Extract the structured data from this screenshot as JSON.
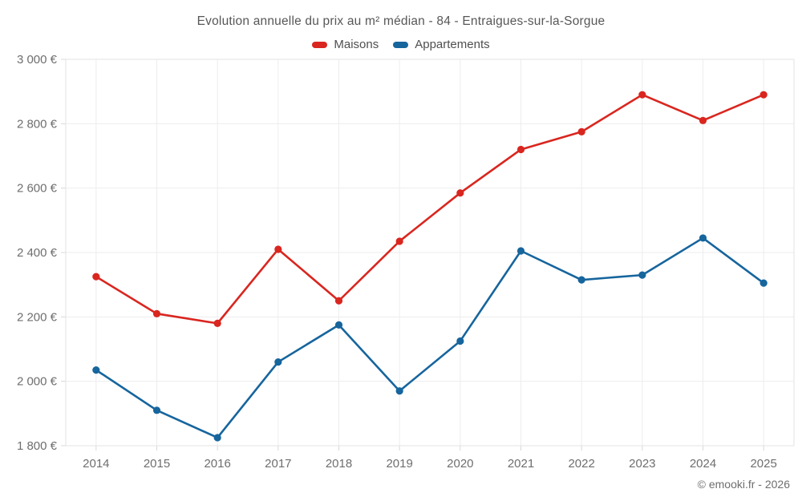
{
  "header": {
    "title": "Evolution annuelle du prix au m² médian - 84 - Entraigues-sur-la-Sorgue"
  },
  "legend": {
    "items": [
      {
        "label": "Maisons",
        "color": "#d9261f"
      },
      {
        "label": "Appartements",
        "color": "#16659d"
      }
    ]
  },
  "footer": {
    "watermark": "© emooki.fr - 2026"
  },
  "colors": {
    "grid": "#ededed",
    "axis_border": "#e3e3e3",
    "tick": "#d8d8d8",
    "title_text": "#575757",
    "axis_text": "#6e6e6e",
    "maisons_red": "#d9261f",
    "appartements_blue": "#16659d"
  },
  "chart_data": {
    "type": "line",
    "title": "Evolution annuelle du prix au m² médian - 84 - Entraigues-sur-la-Sorgue",
    "categories": [
      "2014",
      "2015",
      "2016",
      "2017",
      "2018",
      "2019",
      "2020",
      "2021",
      "2022",
      "2023",
      "2024",
      "2025"
    ],
    "series": [
      {
        "name": "Maisons",
        "color": "#d9261f",
        "values": [
          2325,
          2210,
          2180,
          2410,
          2250,
          2435,
          2585,
          2720,
          2775,
          2890,
          2810,
          2890
        ]
      },
      {
        "name": "Appartements",
        "color": "#16659d",
        "values": [
          2035,
          1910,
          1825,
          2060,
          2175,
          1970,
          2125,
          2405,
          2315,
          2330,
          2445,
          2305
        ]
      }
    ],
    "xlabel": "",
    "ylabel": "",
    "ylim": [
      1800,
      3000
    ],
    "ytick_step": 200,
    "y_tick_labels": [
      "1 800 €",
      "2 000 €",
      "2 200 €",
      "2 400 €",
      "2 600 €",
      "2 800 €",
      "3 000 €"
    ],
    "grid": true,
    "legend_position": "top",
    "marker": "circle"
  }
}
